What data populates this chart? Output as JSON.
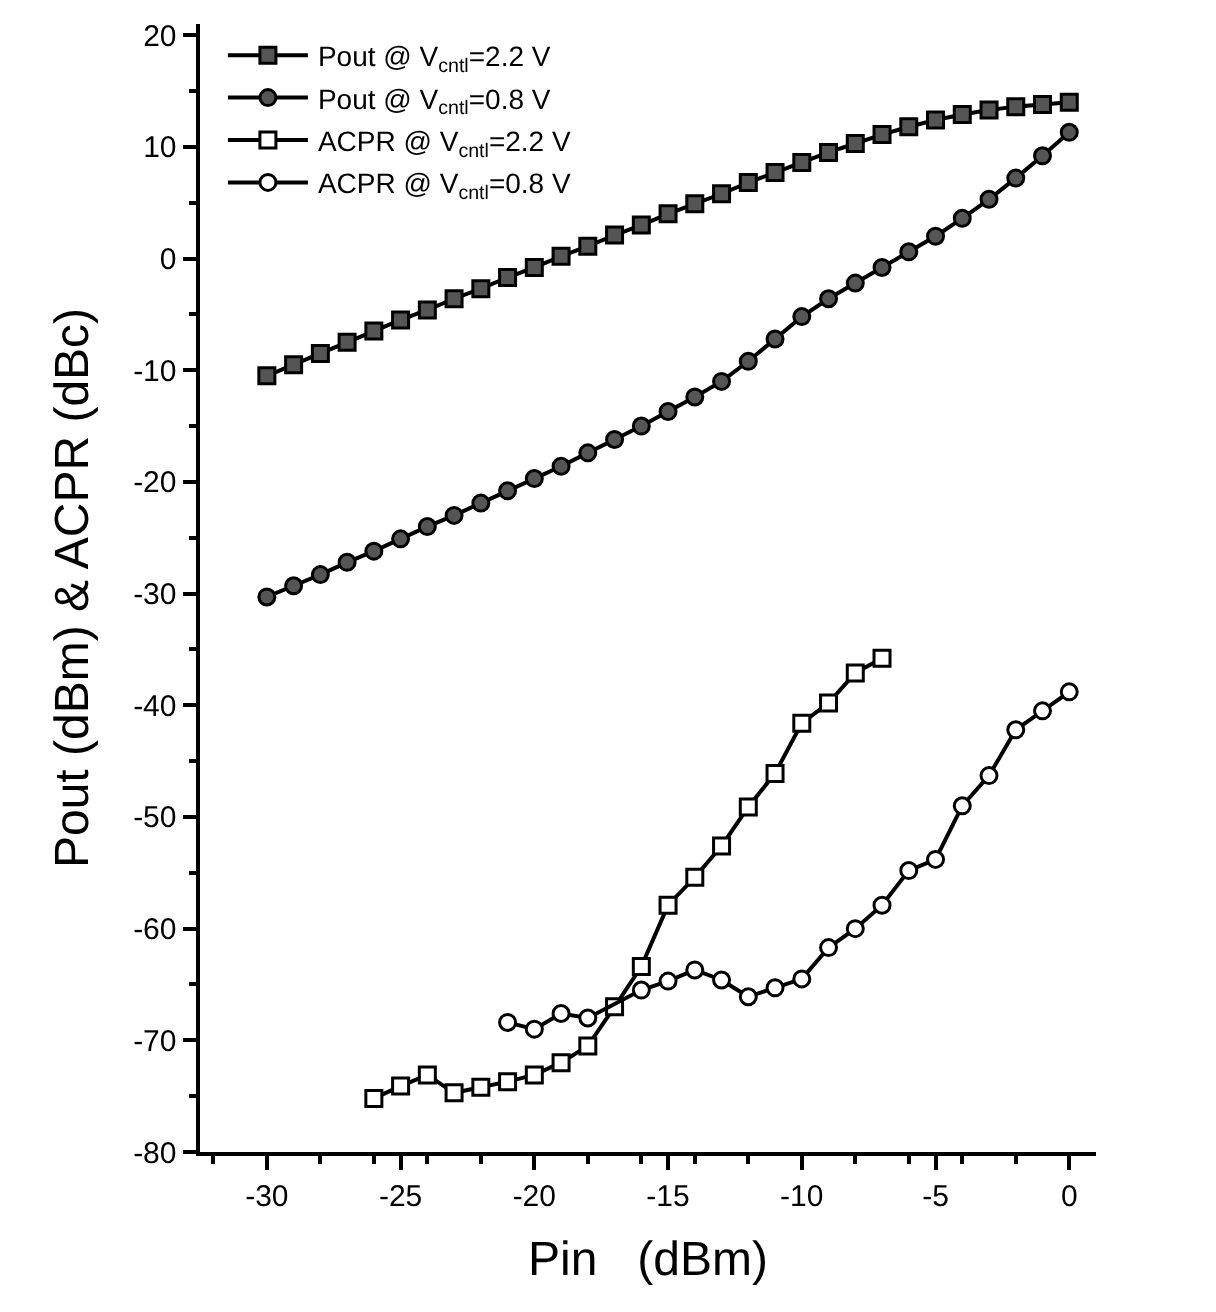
{
  "chart_data": {
    "type": "line",
    "xlabel": "Pin   (dBm)",
    "ylabel": "Pout (dBm) & ACPR (dBc)",
    "xlim": [
      -32.5,
      1
    ],
    "ylim": [
      -80,
      21
    ],
    "xticks": [
      -30,
      -25,
      -20,
      -15,
      -10,
      -5,
      0
    ],
    "yticks": [
      -80,
      -70,
      -60,
      -50,
      -40,
      -30,
      -20,
      -10,
      0,
      10,
      20
    ],
    "legend": "top left",
    "line_style": "solid",
    "series": [
      {
        "name": "Pout @ V$_{cntl}$=2.2 V",
        "color": "#555555",
        "marker": "square",
        "x": [
          -30,
          -29,
          -28,
          -27,
          -26,
          -25,
          -24,
          -23,
          -22,
          -21,
          -20,
          -19,
          -18,
          -17,
          -16,
          -15,
          -14,
          -13,
          -12,
          -11,
          -10,
          -9,
          -8,
          -7,
          -6,
          -5,
          -4,
          -3,
          -2,
          -1,
          0
        ],
        "values": [
          -10.5,
          -9.5,
          -8.5,
          -7.5,
          -6.5,
          -5.5,
          -4.6,
          -3.6,
          -2.7,
          -1.7,
          -0.8,
          0.2,
          1.1,
          2.1,
          3.0,
          4.0,
          4.9,
          5.8,
          6.8,
          7.7,
          8.6,
          9.5,
          10.3,
          11.1,
          11.8,
          12.4,
          12.9,
          13.3,
          13.6,
          13.8,
          14.0
        ]
      },
      {
        "name": "Pout @ V$_{cntl}$=0.8 V",
        "color": "#555555",
        "marker": "circle",
        "x": [
          -30,
          -29,
          -28,
          -27,
          -26,
          -25,
          -24,
          -23,
          -22,
          -21,
          -20,
          -19,
          -18,
          -17,
          -16,
          -15,
          -14,
          -13,
          -12,
          -11,
          -10,
          -9,
          -8,
          -7,
          -6,
          -5,
          -4,
          -3,
          -2,
          -1,
          0
        ],
        "values": [
          -30.3,
          -29.3,
          -28.3,
          -27.2,
          -26.2,
          -25.1,
          -24.0,
          -23.0,
          -21.9,
          -20.8,
          -19.7,
          -18.6,
          -17.4,
          -16.2,
          -15.0,
          -13.7,
          -12.4,
          -11.0,
          -9.2,
          -7.2,
          -5.2,
          -3.6,
          -2.2,
          -0.8,
          0.6,
          2.0,
          3.6,
          5.3,
          7.2,
          9.2,
          11.3
        ]
      },
      {
        "name": "ACPR @ V$_{cntl}$=2.2 V",
        "color": "#ffffff",
        "marker": "square",
        "x": [
          -26,
          -25,
          -24,
          -23,
          -22,
          -21,
          -20,
          -19,
          -18,
          -17,
          -16,
          -15,
          -14,
          -13,
          -12,
          -11,
          -10,
          -9,
          -8,
          -7
        ],
        "values": [
          -75.2,
          -74.1,
          -73.1,
          -74.7,
          -74.2,
          -73.7,
          -73.1,
          -72.0,
          -70.5,
          -67.0,
          -63.4,
          -57.9,
          -55.4,
          -52.6,
          -49.1,
          -46.1,
          -41.6,
          -39.8,
          -37.1,
          -35.8
        ]
      },
      {
        "name": "ACPR @ V$_{cntl}$=0.8 V",
        "color": "#ffffff",
        "marker": "circle",
        "x": [
          -21,
          -20,
          -19,
          -18,
          -16,
          -15,
          -14,
          -13,
          -12,
          -11,
          -10,
          -9,
          -8,
          -7,
          -6,
          -5,
          -4,
          -3,
          -2,
          -1,
          0
        ],
        "values": [
          -68.4,
          -69.0,
          -67.6,
          -68.0,
          -65.5,
          -64.7,
          -63.7,
          -64.6,
          -66.1,
          -65.3,
          -64.5,
          -61.7,
          -60.0,
          -57.9,
          -54.8,
          -53.8,
          -49.0,
          -46.3,
          -42.2,
          -40.5,
          -38.8
        ]
      }
    ]
  }
}
